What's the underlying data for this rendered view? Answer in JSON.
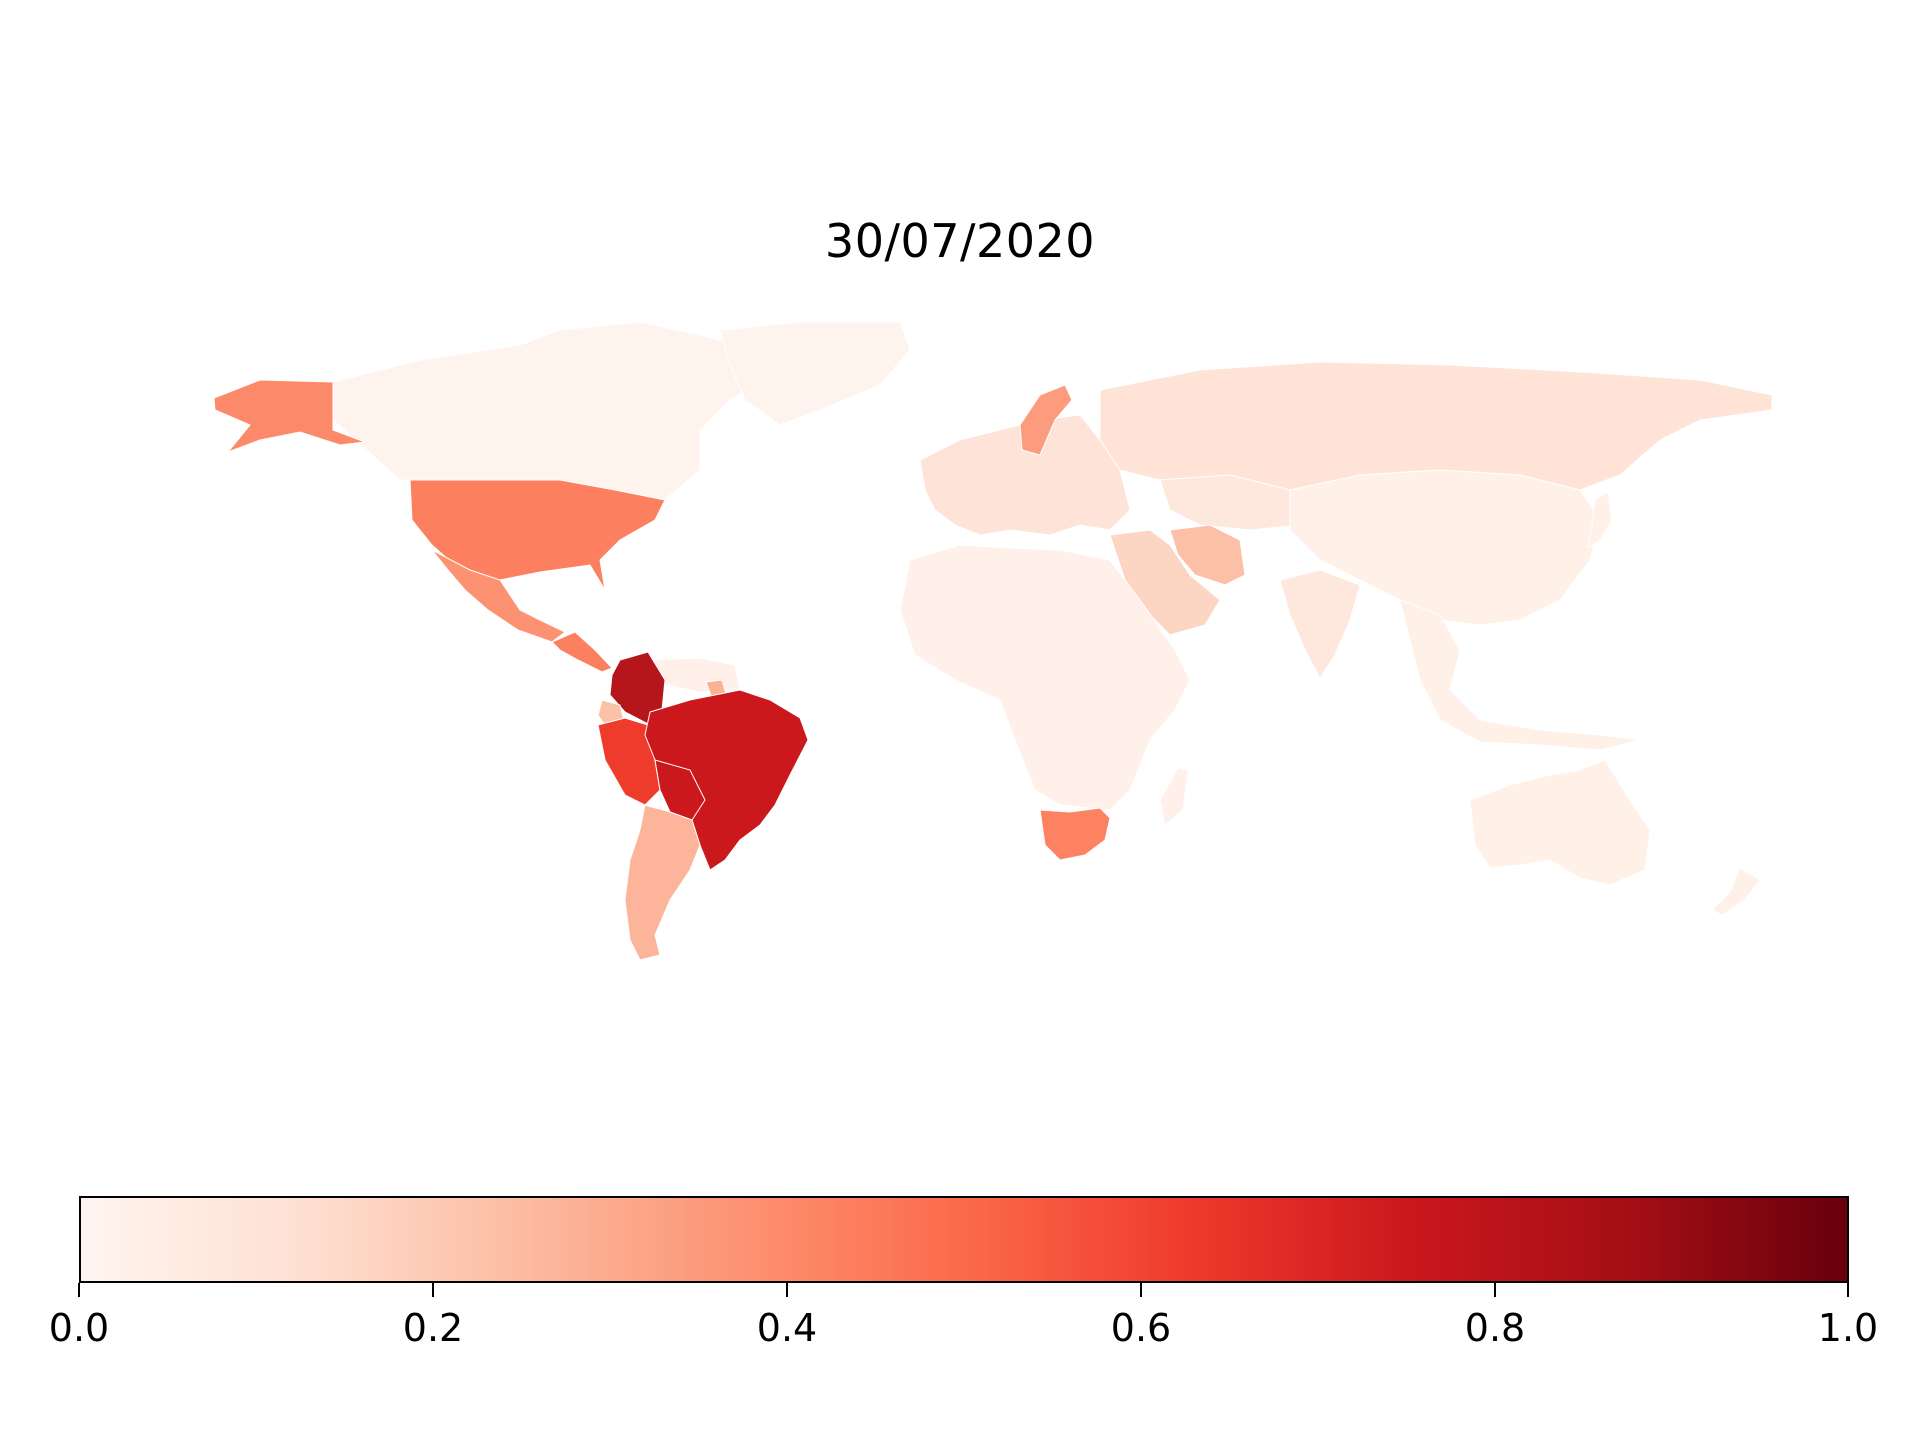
{
  "title": "30/07/2020",
  "colormap": {
    "name": "Reds",
    "stops": [
      "#fff5f0",
      "#fee0d2",
      "#fcbba1",
      "#fc9272",
      "#fb6a4a",
      "#ef3b2c",
      "#cb181d",
      "#a50f15",
      "#67000d"
    ],
    "range": [
      0.0,
      1.0
    ]
  },
  "colorbar": {
    "ticks": [
      "0.0",
      "0.2",
      "0.4",
      "0.6",
      "0.8",
      "1.0"
    ],
    "tick_values": [
      0.0,
      0.2,
      0.4,
      0.6,
      0.8,
      1.0
    ]
  },
  "regions": {
    "canada": "#fff3ee",
    "greenland": "#fff3ee",
    "alaska": "#fc8a6a",
    "usa": "#fc7f5f",
    "mexico": "#fc9272",
    "central-america": "#fb8060",
    "colombia": "#b5161b",
    "venezuela": "#fff1ea",
    "guyana": "#fcb094",
    "ecuador": "#fcc2a8",
    "peru": "#ef3b2c",
    "brazil": "#cb181d",
    "bolivia": "#cb181d",
    "chile": "#fcb59a",
    "argentina": "#fcb59a",
    "europe": "#fee4d8",
    "scandinavia": "#fc9c7d",
    "russia": "#fee3d6",
    "middle-east": "#fdd5c3",
    "iran": "#fcc0a6",
    "kazakhstan": "#fee7dc",
    "africa": "#fff1ea",
    "south-africa": "#fc8262",
    "asia": "#fff0e8",
    "india": "#fee8dd",
    "southeast-asia": "#fff0e8",
    "australia": "#fff0e8",
    "new-zealand": "#fff0e8"
  }
}
